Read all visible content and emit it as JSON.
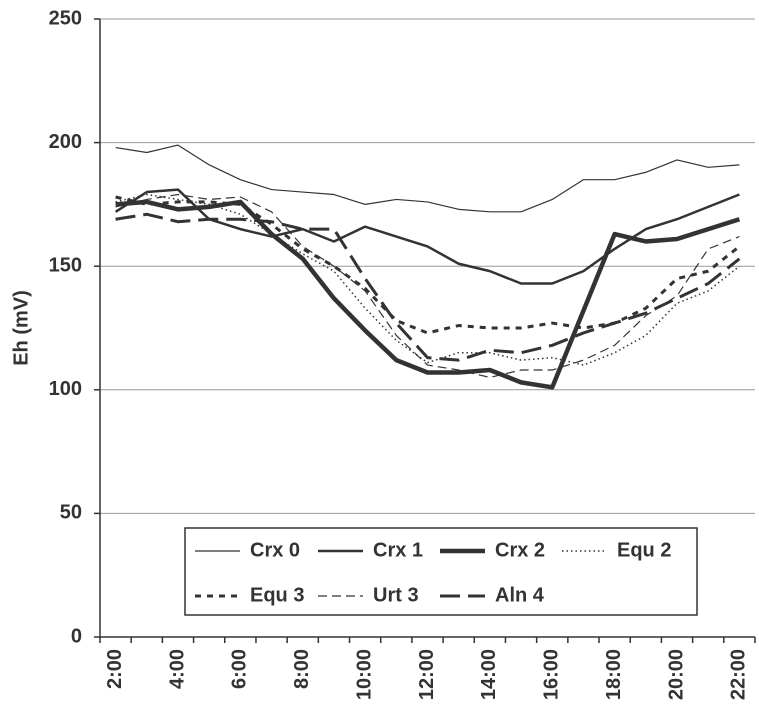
{
  "chart_data": {
    "type": "line",
    "y_label": "Eh (mV)",
    "categories": [
      "2:00",
      null,
      "4:00",
      null,
      "6:00",
      null,
      "8:00",
      null,
      "10:00",
      null,
      "12:00",
      null,
      "14:00",
      null,
      "16:00",
      null,
      "18:00",
      null,
      "20:00",
      null,
      "22:00"
    ],
    "series": [
      {
        "name": "Crx 0",
        "color": "#333333",
        "values": [
          198,
          196,
          199,
          191,
          185,
          181,
          180,
          179,
          175,
          177,
          176,
          173,
          172,
          172,
          177,
          185,
          185,
          188,
          193,
          190,
          191
        ]
      },
      {
        "name": "Crx 1",
        "color": "#333333",
        "values": [
          172,
          180,
          181,
          169,
          165,
          162,
          165,
          160,
          166,
          162,
          158,
          151,
          148,
          143,
          143,
          148,
          157,
          165,
          169,
          174,
          179
        ]
      },
      {
        "name": "Crx 2",
        "color": "#333333",
        "values": [
          175,
          176,
          173,
          174,
          176,
          163,
          153,
          137,
          124,
          112,
          107,
          107,
          108,
          103,
          101,
          132,
          163,
          160,
          161,
          165,
          169
        ]
      },
      {
        "name": "Equ 2",
        "color": "#333333",
        "values": [
          176,
          179,
          177,
          175,
          171,
          163,
          155,
          148,
          133,
          120,
          111,
          115,
          115,
          112,
          113,
          110,
          115,
          122,
          135,
          140,
          150
        ]
      },
      {
        "name": "Equ 3",
        "color": "#333333",
        "values": [
          178,
          175,
          176,
          176,
          175,
          167,
          157,
          150,
          141,
          128,
          123,
          126,
          125,
          125,
          127,
          125,
          127,
          133,
          145,
          148,
          158
        ]
      },
      {
        "name": "Urt 3",
        "color": "#333333",
        "values": [
          174,
          177,
          179,
          177,
          178,
          172,
          158,
          150,
          140,
          122,
          110,
          108,
          105,
          108,
          108,
          112,
          118,
          130,
          138,
          157,
          162
        ]
      },
      {
        "name": "Aln 4",
        "color": "#333333",
        "values": [
          169,
          171,
          168,
          169,
          169,
          168,
          165,
          165,
          145,
          127,
          113,
          112,
          116,
          115,
          118,
          123,
          127,
          131,
          137,
          143,
          153
        ]
      }
    ],
    "ylim": [
      0,
      250
    ],
    "yticks": [
      0,
      50,
      100,
      150,
      200,
      250
    ],
    "grid": true
  }
}
